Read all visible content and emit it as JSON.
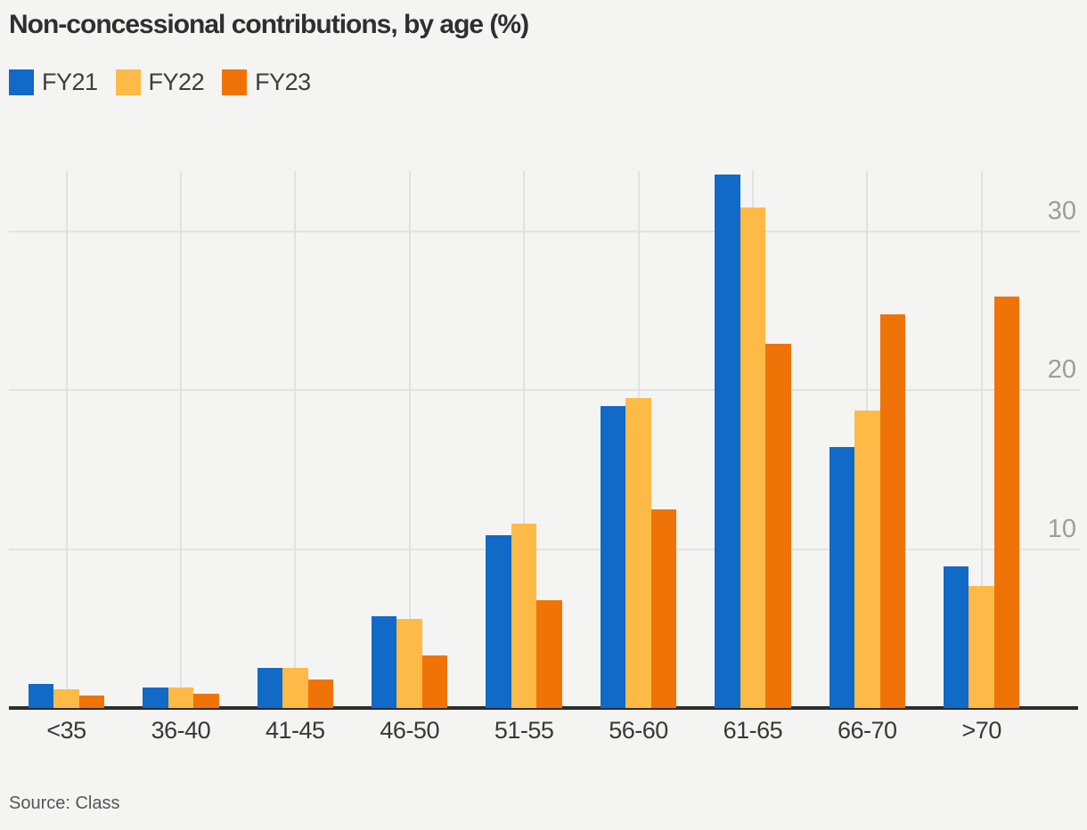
{
  "title": "Non-concessional contributions, by age (%)",
  "source": "Source: Class",
  "colors": {
    "background": "#f4f4f3",
    "fy21_blue": "#1169c8",
    "fy22_yellow": "#feba46",
    "fy23_orange": "#f07307",
    "gridline": "#e3e3e1",
    "axis_line": "#2d2d2d",
    "title_text": "#2f2f31",
    "axis_tick_text": "#9d9d9f",
    "category_text": "#38383a",
    "source_text": "#565658"
  },
  "chart_data": {
    "type": "bar",
    "title": "Non-concessional contributions, by age (%)",
    "xlabel": "",
    "ylabel": "",
    "categories": [
      "<35",
      "36-40",
      "41-45",
      "46-50",
      "51-55",
      "56-60",
      "61-65",
      "66-70",
      ">70"
    ],
    "series": [
      {
        "name": "FY21",
        "color": "#1169c8",
        "values": [
          1.5,
          1.3,
          2.5,
          5.8,
          10.9,
          19.0,
          33.6,
          16.4,
          8.9
        ]
      },
      {
        "name": "FY22",
        "color": "#feba46",
        "values": [
          1.2,
          1.3,
          2.5,
          5.6,
          11.6,
          19.5,
          31.5,
          18.7,
          7.7
        ]
      },
      {
        "name": "FY23",
        "color": "#f07307",
        "values": [
          0.8,
          0.9,
          1.8,
          3.3,
          6.8,
          12.5,
          22.9,
          24.8,
          25.9
        ]
      }
    ],
    "yticks": [
      10,
      20,
      30
    ],
    "ylim": [
      0,
      33.8
    ],
    "grid": true,
    "ytick_label_side": "right",
    "legend_position": "top-left"
  }
}
